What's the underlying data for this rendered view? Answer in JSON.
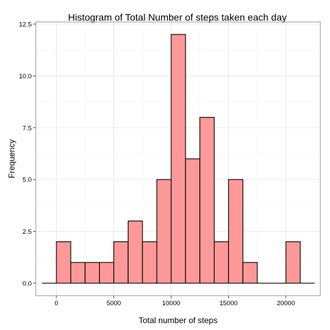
{
  "chart_data": {
    "type": "bar",
    "title": "Histogram of Total Number of steps taken each day",
    "xlabel": "Total number of steps",
    "ylabel": "Frequency",
    "bin_width": 1250,
    "bins": [
      {
        "start": -1250,
        "end": 0,
        "count": 0
      },
      {
        "start": 0,
        "end": 1250,
        "count": 2
      },
      {
        "start": 1250,
        "end": 2500,
        "count": 1
      },
      {
        "start": 2500,
        "end": 3750,
        "count": 1
      },
      {
        "start": 3750,
        "end": 5000,
        "count": 1
      },
      {
        "start": 5000,
        "end": 6250,
        "count": 2
      },
      {
        "start": 6250,
        "end": 7500,
        "count": 3
      },
      {
        "start": 7500,
        "end": 8750,
        "count": 2
      },
      {
        "start": 8750,
        "end": 10000,
        "count": 5
      },
      {
        "start": 10000,
        "end": 11250,
        "count": 12
      },
      {
        "start": 11250,
        "end": 12500,
        "count": 6
      },
      {
        "start": 12500,
        "end": 13750,
        "count": 8
      },
      {
        "start": 13750,
        "end": 15000,
        "count": 2
      },
      {
        "start": 15000,
        "end": 16250,
        "count": 5
      },
      {
        "start": 16250,
        "end": 17500,
        "count": 1
      },
      {
        "start": 17500,
        "end": 18750,
        "count": 0
      },
      {
        "start": 18750,
        "end": 20000,
        "count": 0
      },
      {
        "start": 20000,
        "end": 21250,
        "count": 2
      },
      {
        "start": 21250,
        "end": 22500,
        "count": 0
      }
    ],
    "xlim": [
      -1800,
      23000
    ],
    "ylim": [
      -0.6,
      12.6
    ],
    "x_ticks": [
      0,
      5000,
      10000,
      15000,
      20000
    ],
    "x_tick_labels": [
      "0",
      "5000",
      "10000",
      "15000",
      "20000"
    ],
    "y_ticks": [
      0,
      2.5,
      5,
      7.5,
      10,
      12.5
    ],
    "y_tick_labels": [
      "0.0",
      "2.5",
      "5.0",
      "7.5",
      "10.0",
      "12.5"
    ],
    "grid": true,
    "legend": "none",
    "colors": {
      "bar_fill": "#ff9999",
      "bar_outline": "#000000",
      "background": "#ffffff"
    }
  }
}
